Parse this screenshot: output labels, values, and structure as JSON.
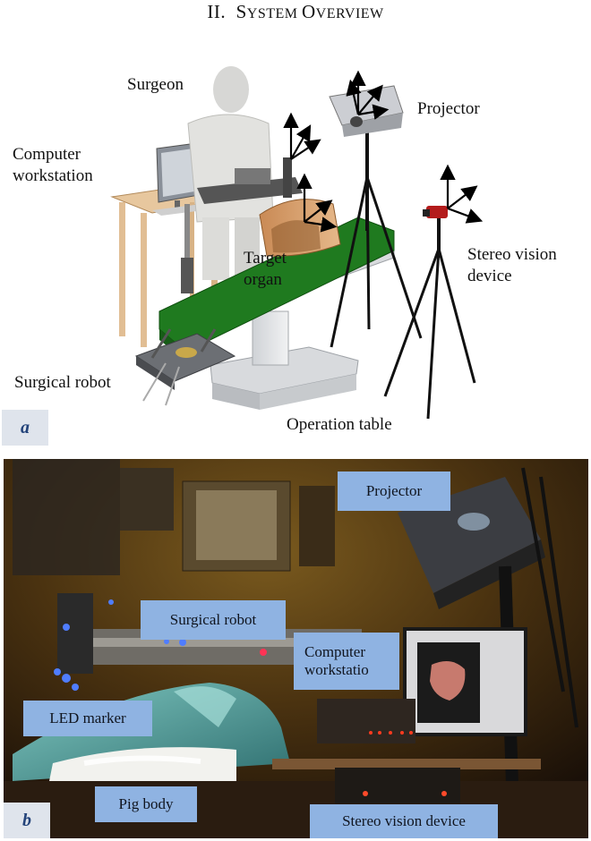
{
  "section": {
    "numeral": "II.",
    "title_first": "S",
    "title_rest_1": "YSTEM ",
    "title_o": "O",
    "title_rest_2": "VERVIEW"
  },
  "panel_a": {
    "letter": "a",
    "labels": {
      "surgeon": "Surgeon",
      "projector": "Projector",
      "computer_1": "Computer",
      "computer_2": "workstation",
      "target_1": "Target",
      "target_2": "organ",
      "stereo_1": "Stereo vision",
      "stereo_2": "device",
      "surgical_robot": "Surgical robot",
      "operation_table": "Operation table"
    }
  },
  "panel_b": {
    "letter": "b",
    "tags": {
      "projector": "Projector",
      "surgical_robot": "Surgical robot",
      "computer_1": "Computer",
      "computer_2": "workstatio",
      "led_marker": "LED marker",
      "pig_body": "Pig body",
      "stereo": "Stereo vision device"
    }
  },
  "colors": {
    "table_green": "#1f7a1f",
    "tag_blue": "#8fb3e2",
    "letter_blue": "#23437a"
  }
}
